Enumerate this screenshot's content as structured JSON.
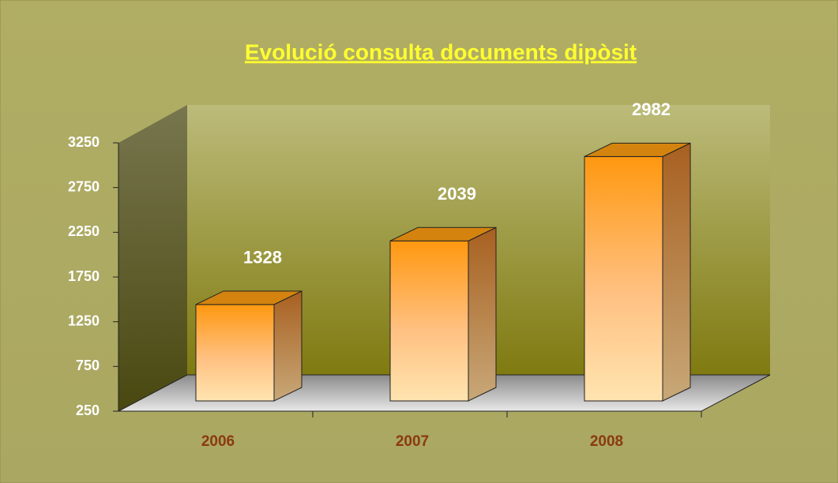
{
  "chart_data": {
    "type": "bar3d",
    "title": "Evolució consulta documents dipòsit",
    "categories": [
      "2006",
      "2007",
      "2008"
    ],
    "values": [
      1328,
      2039,
      2982
    ],
    "color": "#ff9a10",
    "ylim": [
      250,
      3250
    ],
    "yticks": [
      250,
      750,
      1250,
      1750,
      2250,
      2750,
      3250
    ],
    "grid": false
  }
}
